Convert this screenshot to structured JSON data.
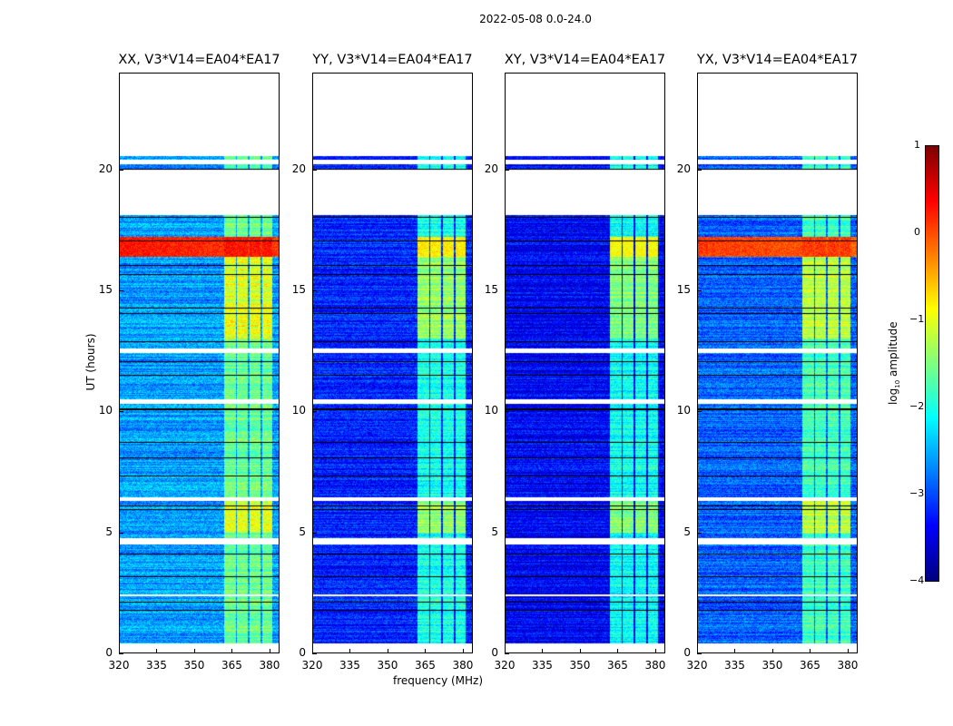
{
  "chart_data": {
    "type": "heatmap",
    "title": "2022-05-08 0.0-24.0",
    "xlabel": "frequency (MHz)",
    "ylabel": "UT (hours)",
    "xlim": [
      320,
      384
    ],
    "ylim": [
      0,
      24
    ],
    "xticks": [
      "320",
      "335",
      "350",
      "365",
      "380"
    ],
    "yticks": [
      "0",
      "5",
      "10",
      "15",
      "20"
    ],
    "panels": [
      {
        "title": "XX, V3*V14=EA04*EA17",
        "base": -2.6,
        "band": -1.6,
        "rfi": 0.3,
        "rfi_wide": true
      },
      {
        "title": "YY, V3*V14=EA04*EA17",
        "base": -3.2,
        "band": -2.0,
        "rfi": -0.8,
        "rfi_wide": false
      },
      {
        "title": "XY, V3*V14=EA04*EA17",
        "base": -3.4,
        "band": -2.1,
        "rfi": -0.9,
        "rfi_wide": false
      },
      {
        "title": "YX, V3*V14=EA04*EA17",
        "base": -2.9,
        "band": -1.8,
        "rfi": 0.1,
        "rfi_wide": true
      }
    ],
    "band_channels_mhz": [
      [
        362,
        366.5
      ],
      [
        367,
        371.5
      ],
      [
        372,
        376.5
      ],
      [
        377,
        381
      ]
    ],
    "flagged_hours": [
      [
        0,
        0.4
      ],
      [
        2.35,
        2.45
      ],
      [
        4.5,
        4.75
      ],
      [
        6.3,
        6.45
      ],
      [
        10.3,
        10.5
      ],
      [
        12.4,
        12.6
      ],
      [
        18.1,
        20.0
      ],
      [
        20.2,
        20.4
      ],
      [
        20.55,
        24
      ]
    ],
    "bright_hours": [
      [
        13.0,
        16.4,
        0.6
      ],
      [
        16.4,
        17.2,
        1.6
      ],
      [
        5.0,
        6.3,
        0.6
      ],
      [
        0.4,
        4.5,
        0.0
      ]
    ],
    "colorbar": {
      "label_main": "log",
      "label_sub": "10",
      "label_rest": " amplitude",
      "range": [
        -4,
        1
      ],
      "ticks": [
        "1",
        "0",
        "−1",
        "−2",
        "−3",
        "−4"
      ]
    }
  }
}
